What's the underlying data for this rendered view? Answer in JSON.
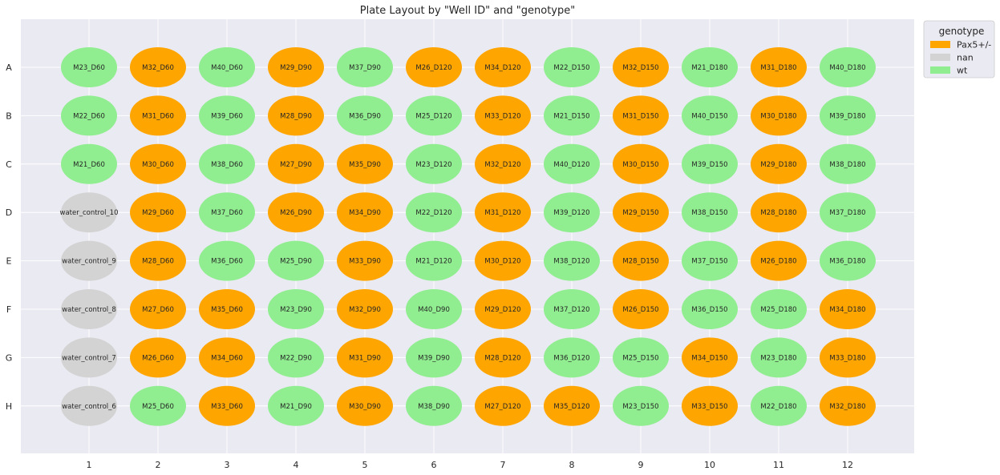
{
  "chart_data": {
    "type": "scatter",
    "title": "Plate Layout by \"Well ID\" and \"genotype\"",
    "xlabel": "",
    "ylabel": "",
    "columns": [
      "1",
      "2",
      "3",
      "4",
      "5",
      "6",
      "7",
      "8",
      "9",
      "10",
      "11",
      "12"
    ],
    "rows": [
      "A",
      "B",
      "C",
      "D",
      "E",
      "F",
      "G",
      "H"
    ],
    "grid": true,
    "legend": {
      "title": "genotype",
      "placement": "outside top-right",
      "entries": [
        {
          "name": "Pax5+/-",
          "color": "#ffa500"
        },
        {
          "name": "nan",
          "color": "#d3d3d3"
        },
        {
          "name": "wt",
          "color": "#90ee90"
        }
      ]
    },
    "wells": [
      [
        "M23_D60",
        "wt"
      ],
      [
        "M32_D60",
        "Pax5+/-"
      ],
      [
        "M40_D60",
        "wt"
      ],
      [
        "M29_D90",
        "Pax5+/-"
      ],
      [
        "M37_D90",
        "wt"
      ],
      [
        "M26_D120",
        "Pax5+/-"
      ],
      [
        "M34_D120",
        "Pax5+/-"
      ],
      [
        "M22_D150",
        "wt"
      ],
      [
        "M32_D150",
        "Pax5+/-"
      ],
      [
        "M21_D180",
        "wt"
      ],
      [
        "M31_D180",
        "Pax5+/-"
      ],
      [
        "M40_D180",
        "wt"
      ],
      [
        "M22_D60",
        "wt"
      ],
      [
        "M31_D60",
        "Pax5+/-"
      ],
      [
        "M39_D60",
        "wt"
      ],
      [
        "M28_D90",
        "Pax5+/-"
      ],
      [
        "M36_D90",
        "wt"
      ],
      [
        "M25_D120",
        "wt"
      ],
      [
        "M33_D120",
        "Pax5+/-"
      ],
      [
        "M21_D150",
        "wt"
      ],
      [
        "M31_D150",
        "Pax5+/-"
      ],
      [
        "M40_D150",
        "wt"
      ],
      [
        "M30_D180",
        "Pax5+/-"
      ],
      [
        "M39_D180",
        "wt"
      ],
      [
        "M21_D60",
        "wt"
      ],
      [
        "M30_D60",
        "Pax5+/-"
      ],
      [
        "M38_D60",
        "wt"
      ],
      [
        "M27_D90",
        "Pax5+/-"
      ],
      [
        "M35_D90",
        "Pax5+/-"
      ],
      [
        "M23_D120",
        "wt"
      ],
      [
        "M32_D120",
        "Pax5+/-"
      ],
      [
        "M40_D120",
        "wt"
      ],
      [
        "M30_D150",
        "Pax5+/-"
      ],
      [
        "M39_D150",
        "wt"
      ],
      [
        "M29_D180",
        "Pax5+/-"
      ],
      [
        "M38_D180",
        "wt"
      ],
      [
        "water_control_10",
        "nan"
      ],
      [
        "M29_D60",
        "Pax5+/-"
      ],
      [
        "M37_D60",
        "wt"
      ],
      [
        "M26_D90",
        "Pax5+/-"
      ],
      [
        "M34_D90",
        "Pax5+/-"
      ],
      [
        "M22_D120",
        "wt"
      ],
      [
        "M31_D120",
        "Pax5+/-"
      ],
      [
        "M39_D120",
        "wt"
      ],
      [
        "M29_D150",
        "Pax5+/-"
      ],
      [
        "M38_D150",
        "wt"
      ],
      [
        "M28_D180",
        "Pax5+/-"
      ],
      [
        "M37_D180",
        "wt"
      ],
      [
        "water_control_9",
        "nan"
      ],
      [
        "M28_D60",
        "Pax5+/-"
      ],
      [
        "M36_D60",
        "wt"
      ],
      [
        "M25_D90",
        "wt"
      ],
      [
        "M33_D90",
        "Pax5+/-"
      ],
      [
        "M21_D120",
        "wt"
      ],
      [
        "M30_D120",
        "Pax5+/-"
      ],
      [
        "M38_D120",
        "wt"
      ],
      [
        "M28_D150",
        "Pax5+/-"
      ],
      [
        "M37_D150",
        "wt"
      ],
      [
        "M26_D180",
        "Pax5+/-"
      ],
      [
        "M36_D180",
        "wt"
      ],
      [
        "water_control_8",
        "nan"
      ],
      [
        "M27_D60",
        "Pax5+/-"
      ],
      [
        "M35_D60",
        "Pax5+/-"
      ],
      [
        "M23_D90",
        "wt"
      ],
      [
        "M32_D90",
        "Pax5+/-"
      ],
      [
        "M40_D90",
        "wt"
      ],
      [
        "M29_D120",
        "Pax5+/-"
      ],
      [
        "M37_D120",
        "wt"
      ],
      [
        "M26_D150",
        "Pax5+/-"
      ],
      [
        "M36_D150",
        "wt"
      ],
      [
        "M25_D180",
        "wt"
      ],
      [
        "M34_D180",
        "Pax5+/-"
      ],
      [
        "water_control_7",
        "nan"
      ],
      [
        "M26_D60",
        "Pax5+/-"
      ],
      [
        "M34_D60",
        "Pax5+/-"
      ],
      [
        "M22_D90",
        "wt"
      ],
      [
        "M31_D90",
        "Pax5+/-"
      ],
      [
        "M39_D90",
        "wt"
      ],
      [
        "M28_D120",
        "Pax5+/-"
      ],
      [
        "M36_D120",
        "wt"
      ],
      [
        "M25_D150",
        "wt"
      ],
      [
        "M34_D150",
        "Pax5+/-"
      ],
      [
        "M23_D180",
        "wt"
      ],
      [
        "M33_D180",
        "Pax5+/-"
      ],
      [
        "water_control_6",
        "nan"
      ],
      [
        "M25_D60",
        "wt"
      ],
      [
        "M33_D60",
        "Pax5+/-"
      ],
      [
        "M21_D90",
        "wt"
      ],
      [
        "M30_D90",
        "Pax5+/-"
      ],
      [
        "M38_D90",
        "wt"
      ],
      [
        "M27_D120",
        "Pax5+/-"
      ],
      [
        "M35_D120",
        "Pax5+/-"
      ],
      [
        "M23_D150",
        "wt"
      ],
      [
        "M33_D150",
        "Pax5+/-"
      ],
      [
        "M22_D180",
        "wt"
      ],
      [
        "M32_D180",
        "Pax5+/-"
      ]
    ]
  }
}
